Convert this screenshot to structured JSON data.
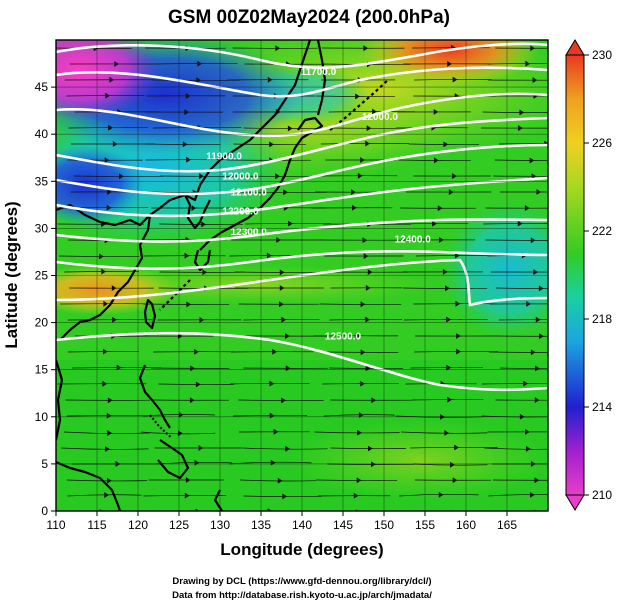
{
  "chart_data": {
    "type": "heatmap",
    "title": "GSM 00Z02May2024 (200.0hPa)",
    "xlabel": "Longitude (degrees)",
    "ylabel": "Latitude  (degrees)",
    "xlim": [
      110,
      170
    ],
    "ylim": [
      0,
      50
    ],
    "x_ticks": [
      "110",
      "115",
      "120",
      "125",
      "130",
      "135",
      "140",
      "145",
      "150",
      "155",
      "160",
      "165"
    ],
    "y_ticks": [
      "0",
      "5",
      "10",
      "15",
      "20",
      "25",
      "30",
      "35",
      "40",
      "45"
    ],
    "colorbar": {
      "min": 210,
      "max": 230,
      "ticks": [
        "210",
        "214",
        "218",
        "222",
        "226",
        "230"
      ]
    },
    "contour_labels": [
      {
        "text": "11700.0",
        "lon": 142,
        "lat": 46.3
      },
      {
        "text": "12000.0",
        "lon": 149.5,
        "lat": 41.5
      },
      {
        "text": "11900.0",
        "lon": 130.5,
        "lat": 37.3
      },
      {
        "text": "12000.0",
        "lon": 132.5,
        "lat": 35.2
      },
      {
        "text": "12100.0",
        "lon": 133.5,
        "lat": 33.5
      },
      {
        "text": "12200.0",
        "lon": 132.5,
        "lat": 31.5
      },
      {
        "text": "12300.0",
        "lon": 133.5,
        "lat": 29.3
      },
      {
        "text": "12400.0",
        "lon": 153.5,
        "lat": 28.5
      },
      {
        "text": "12500.0",
        "lon": 145,
        "lat": 18.2
      }
    ],
    "grid": true,
    "colors": {
      "magenta": "#e83ec8",
      "blue": "#1a2fc8",
      "cyan": "#1aa6e0",
      "green": "#33cc22",
      "yellow": "#d8d820",
      "orange": "#f0a020",
      "red": "#e83a22"
    }
  },
  "credits": {
    "line1": "Drawing by DCL (https://www.gfd-dennou.org/library/dcl/)",
    "line2": "Data from http://database.rish.kyoto-u.ac.jp/arch/jmadata/"
  }
}
